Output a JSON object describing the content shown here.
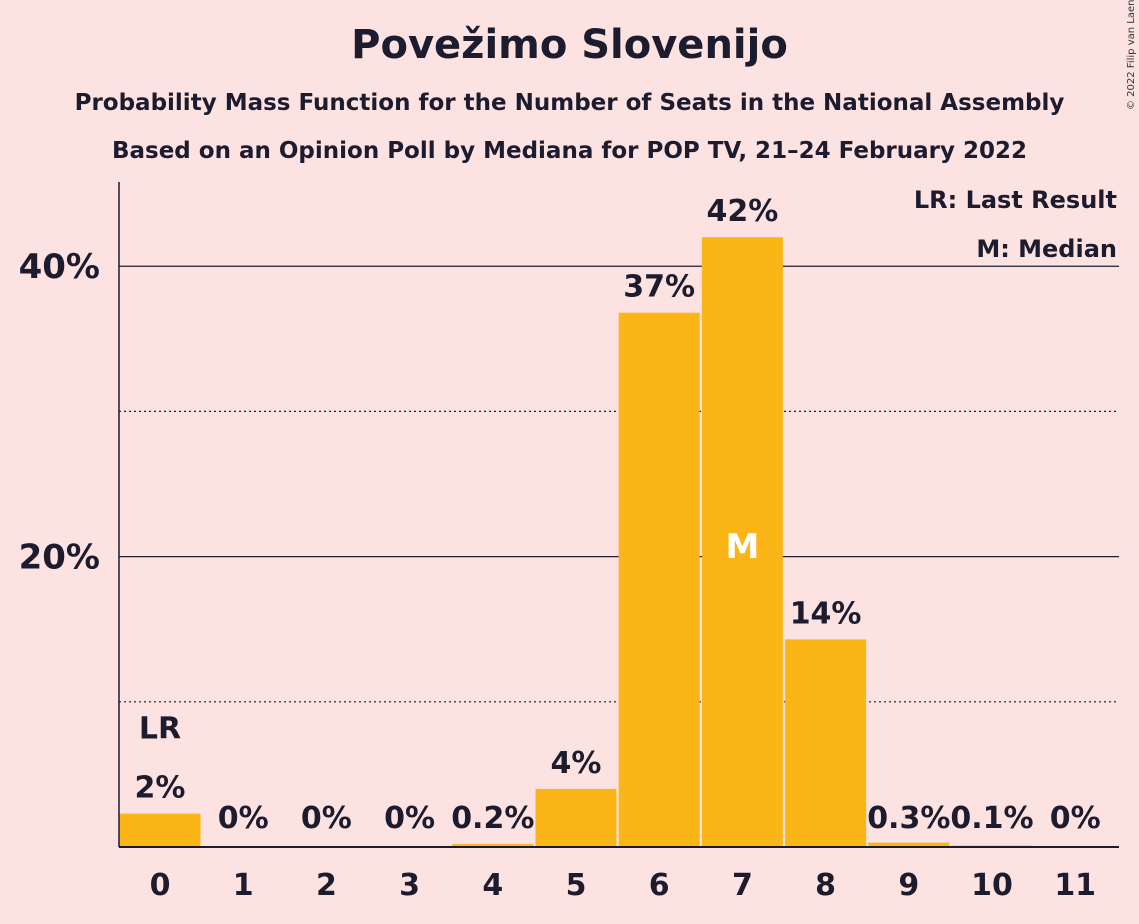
{
  "title": "Povežimo Slovenijo",
  "subtitle1": "Probability Mass Function for the Number of Seats in the National Assembly",
  "subtitle2": "Based on an Opinion Poll by Mediana for POP TV, 21–24 February 2022",
  "copyright": "© 2022 Filip van Laenen",
  "legend": {
    "lr": "LR: Last Result",
    "median": "M: Median"
  },
  "colors": {
    "bar": "#fbb516",
    "background": "#fde2e2",
    "text": "#1c1c2e"
  },
  "chart_data": {
    "type": "bar",
    "categories": [
      "0",
      "1",
      "2",
      "3",
      "4",
      "5",
      "6",
      "7",
      "8",
      "9",
      "10",
      "11"
    ],
    "values": [
      2.3,
      0,
      0,
      0,
      0.2,
      4,
      36.8,
      42,
      14.3,
      0.3,
      0.1,
      0
    ],
    "value_labels": [
      "2%",
      "0%",
      "0%",
      "0%",
      "0.2%",
      "4%",
      "37%",
      "42%",
      "14%",
      "0.3%",
      "0.1%",
      "0%"
    ],
    "ylim": [
      0,
      45.8
    ],
    "yticks": [
      20,
      40
    ],
    "ytick_labels": [
      "20%",
      "40%"
    ],
    "minor_gridlines": [
      10,
      30
    ],
    "last_result_index": 0,
    "last_result_marker": "LR",
    "median_index": 7,
    "median_marker": "M"
  }
}
